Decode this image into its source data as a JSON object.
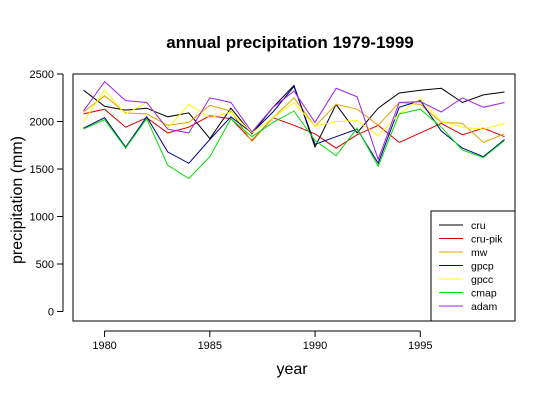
{
  "chart_data": {
    "type": "line",
    "title": "annual precipitation 1979-1999",
    "xlabel": "year",
    "ylabel": "precipitation (mm)",
    "xlim": [
      1978.5,
      1999.5
    ],
    "ylim": [
      -100,
      2500
    ],
    "x_ticks": [
      1980,
      1985,
      1990,
      1995
    ],
    "y_ticks": [
      0,
      500,
      1000,
      1500,
      2000,
      2500
    ],
    "grid": false,
    "legend_position": "bottom-right",
    "x": [
      1979,
      1980,
      1981,
      1982,
      1983,
      1984,
      1985,
      1986,
      1987,
      1988,
      1989,
      1990,
      1991,
      1992,
      1993,
      1994,
      1995,
      1996,
      1997,
      1998,
      1999
    ],
    "series": [
      {
        "name": "cru",
        "color": "#000000",
        "values": [
          2330,
          2160,
          2120,
          2140,
          2050,
          2090,
          1820,
          2140,
          1870,
          2150,
          2380,
          1730,
          2180,
          1880,
          2140,
          2300,
          2330,
          2350,
          2200,
          2280,
          2310
        ]
      },
      {
        "name": "cru-pik",
        "color": "#dd0000",
        "values": [
          2080,
          2130,
          1940,
          2040,
          1880,
          1940,
          2060,
          2030,
          1800,
          2040,
          1960,
          1870,
          1720,
          1860,
          1960,
          1780,
          1880,
          1980,
          1860,
          1930,
          1840
        ]
      },
      {
        "name": "mw",
        "color": "#e0a400",
        "values": [
          2100,
          2270,
          2090,
          2080,
          1960,
          1990,
          2170,
          2110,
          1790,
          2040,
          2250,
          1950,
          2180,
          2130,
          1960,
          2200,
          2180,
          1990,
          1980,
          1780,
          1870
        ]
      },
      {
        "name": "gpcp",
        "color": "#00008b",
        "values": [
          1930,
          2040,
          1730,
          2050,
          1680,
          1560,
          1810,
          2050,
          1880,
          2100,
          2370,
          1760,
          1840,
          1920,
          1560,
          2150,
          2220,
          1900,
          1720,
          1630,
          1810
        ]
      },
      {
        "name": "gpcc",
        "color": "#ffff00",
        "values": [
          2000,
          2330,
          2080,
          2200,
          1930,
          2180,
          2040,
          2100,
          1880,
          2040,
          2200,
          1950,
          2000,
          2010,
          1850,
          2080,
          2240,
          2000,
          1940,
          1920,
          1980
        ]
      },
      {
        "name": "cmap",
        "color": "#00e000",
        "values": [
          1920,
          2020,
          1720,
          2030,
          1540,
          1400,
          1630,
          2030,
          1840,
          1990,
          2110,
          1800,
          1640,
          1930,
          1530,
          2080,
          2130,
          1940,
          1700,
          1620,
          1800
        ]
      },
      {
        "name": "adam",
        "color": "#a020f0",
        "values": [
          2110,
          2420,
          2220,
          2200,
          1920,
          1880,
          2250,
          2200,
          1890,
          2150,
          2320,
          1990,
          2350,
          2260,
          1600,
          2200,
          2210,
          2100,
          2250,
          2150,
          2200
        ]
      }
    ]
  }
}
